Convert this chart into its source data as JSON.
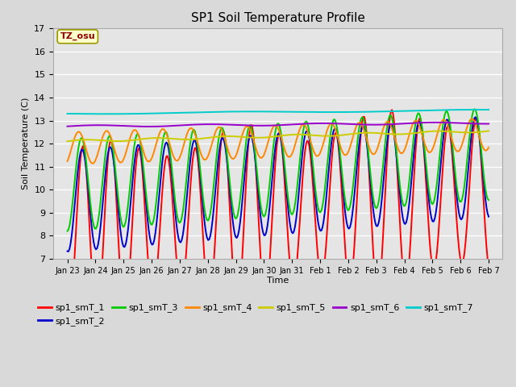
{
  "title": "SP1 Soil Temperature Profile",
  "xlabel": "Time",
  "ylabel": "Soil Temperature (C)",
  "ylim": [
    7.0,
    17.0
  ],
  "yticks": [
    7.0,
    8.0,
    9.0,
    10.0,
    11.0,
    12.0,
    13.0,
    14.0,
    15.0,
    16.0,
    17.0
  ],
  "x_labels": [
    "Jan 23",
    "Jan 24",
    "Jan 25",
    "Jan 26",
    "Jan 27",
    "Jan 28",
    "Jan 29",
    "Jan 30",
    "Jan 31",
    "Feb 1",
    "Feb 2",
    "Feb 3",
    "Feb 4",
    "Feb 5",
    "Feb 6",
    "Feb 7"
  ],
  "tz_label": "TZ_osu",
  "tz_box_color": "#ffffcc",
  "tz_text_color": "#8b0000",
  "background_color": "#d9d9d9",
  "plot_bg_color": "#e5e5e5",
  "series_colors": {
    "sp1_smT_1": "#ff0000",
    "sp1_smT_2": "#0000cc",
    "sp1_smT_3": "#00cc00",
    "sp1_smT_4": "#ff8800",
    "sp1_smT_5": "#cccc00",
    "sp1_smT_6": "#9900cc",
    "sp1_smT_7": "#00cccc"
  },
  "legend_entries": [
    "sp1_smT_1",
    "sp1_smT_2",
    "sp1_smT_3",
    "sp1_smT_4",
    "sp1_smT_5",
    "sp1_smT_6",
    "sp1_smT_7"
  ]
}
